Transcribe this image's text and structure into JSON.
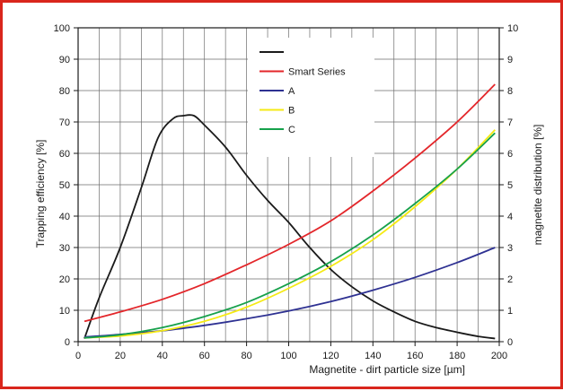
{
  "chart_data": {
    "type": "line",
    "title": "",
    "xlabel": "Magnetite - dirt particle size [µm]",
    "ylabel": "Trapping efficiency [%]",
    "y2label": "magnetite distribution [%]",
    "xlim": [
      0,
      200
    ],
    "ylim": [
      0,
      100
    ],
    "y2lim": [
      0,
      10
    ],
    "grid": true,
    "legend_position": "top-center",
    "x_ticks": [
      "0",
      "20",
      "40",
      "60",
      "80",
      "100",
      "120",
      "140",
      "160",
      "180",
      "200"
    ],
    "y_ticks": [
      "0",
      "10",
      "20",
      "30",
      "40",
      "50",
      "60",
      "70",
      "80",
      "90",
      "100"
    ],
    "y2_ticks": [
      "0",
      "1",
      "2",
      "3",
      "4",
      "5",
      "6",
      "7",
      "8",
      "9",
      "10"
    ],
    "series": [
      {
        "name": "",
        "axis": "right",
        "color": "#1a1a1a",
        "x": [
          3,
          10,
          20,
          30,
          38,
          45,
          50,
          55,
          60,
          70,
          80,
          90,
          100,
          110,
          120,
          130,
          140,
          150,
          160,
          170,
          180,
          190,
          198
        ],
        "y": [
          0.1,
          1.4,
          3.0,
          4.9,
          6.5,
          7.1,
          7.2,
          7.2,
          6.9,
          6.2,
          5.3,
          4.5,
          3.8,
          3.0,
          2.3,
          1.75,
          1.3,
          0.95,
          0.65,
          0.45,
          0.3,
          0.17,
          0.1
        ]
      },
      {
        "name": "Smart Series",
        "axis": "left",
        "color": "#e3262a",
        "x": [
          3,
          20,
          40,
          60,
          80,
          100,
          120,
          140,
          160,
          180,
          198
        ],
        "y": [
          6.5,
          9.5,
          13.5,
          18.5,
          24.5,
          31,
          38.5,
          48,
          58.5,
          70,
          82
        ]
      },
      {
        "name": "A",
        "axis": "left",
        "color": "#2e3192",
        "x": [
          3,
          20,
          40,
          60,
          80,
          100,
          120,
          140,
          160,
          180,
          198
        ],
        "y": [
          1.5,
          2.3,
          3.5,
          5.2,
          7.3,
          9.8,
          12.8,
          16.4,
          20.5,
          25.2,
          30
        ]
      },
      {
        "name": "B",
        "axis": "left",
        "color": "#f5ea14",
        "x": [
          3,
          20,
          40,
          60,
          80,
          100,
          120,
          140,
          160,
          180,
          198
        ],
        "y": [
          1.2,
          1.8,
          3.5,
          6.5,
          11,
          17,
          24,
          32.5,
          43,
          55,
          67.5
        ]
      },
      {
        "name": "C",
        "axis": "left",
        "color": "#16a14b",
        "x": [
          3,
          20,
          40,
          60,
          80,
          100,
          120,
          140,
          160,
          180,
          198
        ],
        "y": [
          1.2,
          2.2,
          4.5,
          8,
          12.5,
          18.5,
          25.5,
          34,
          44,
          55,
          66.5
        ]
      }
    ]
  }
}
